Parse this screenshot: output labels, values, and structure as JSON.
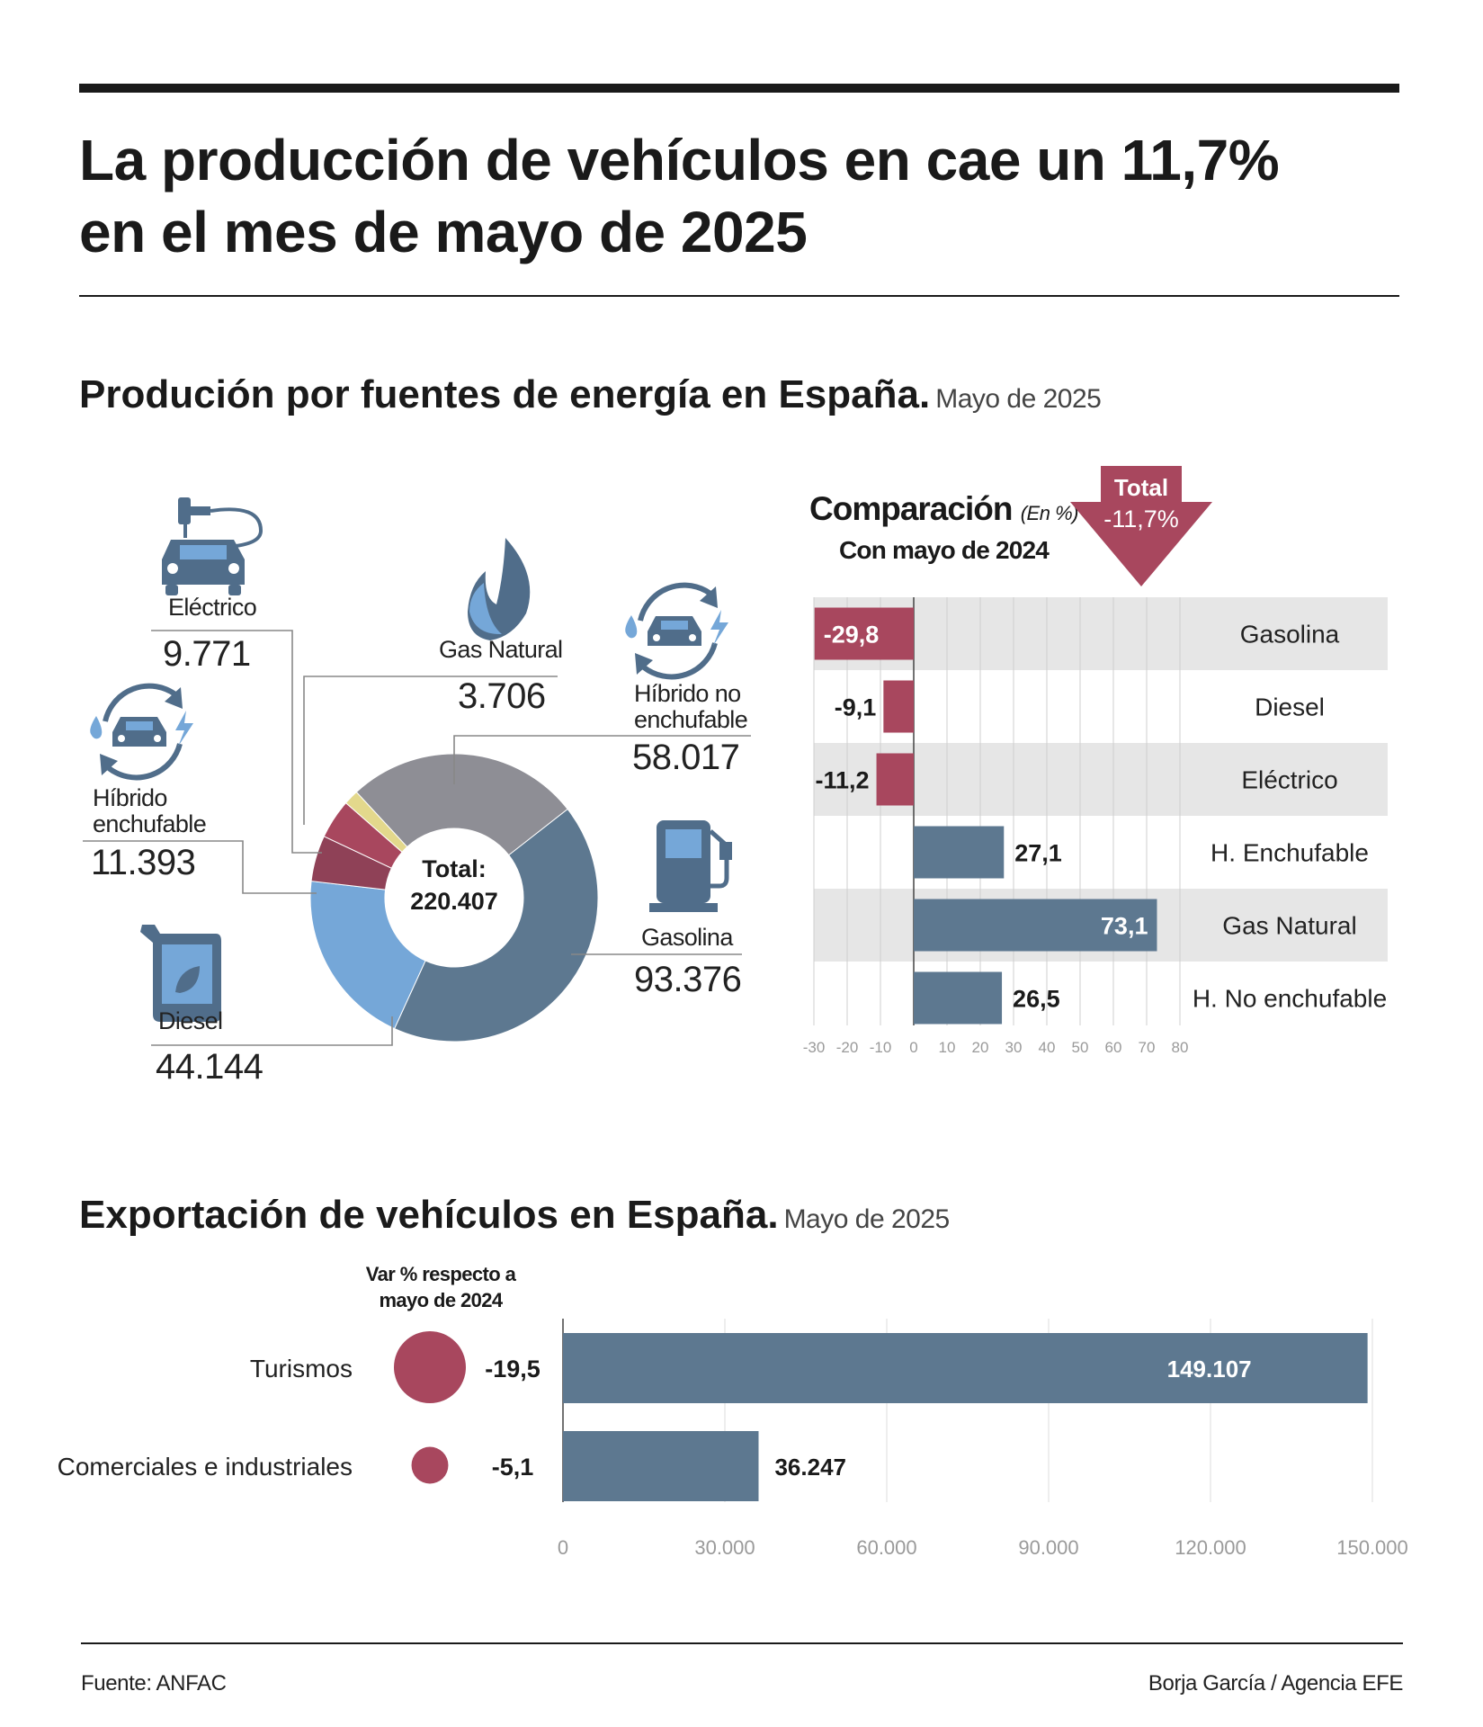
{
  "title_line1": "La producción de vehículos en cae un 11,7%",
  "title_line2": "en el mes de mayo de 2025",
  "section1": {
    "title": "Produción por fuentes de energía en España.",
    "subtitle": "Mayo de 2025"
  },
  "section2": {
    "title": "Exportación de vehículos en España.",
    "subtitle": "Mayo de 2025"
  },
  "donut": {
    "center_label": "Total:",
    "center_value": "220.407",
    "labels": {
      "electrico": {
        "name": "Eléctrico",
        "value": "9.771"
      },
      "gas_natural": {
        "name": "Gas Natural",
        "value": "3.706"
      },
      "hibrido_no_line1": "Híbrido no",
      "hibrido_no_line2": "enchufable",
      "hibrido_no_value": "58.017",
      "hibrido_enchufable_line1": "Híbrido",
      "hibrido_enchufable_line2": "enchufable",
      "hibrido_enchufable_value": "11.393",
      "gasolina": {
        "name": "Gasolina",
        "value": "93.376"
      },
      "diesel": {
        "name": "Diesel",
        "value": "44.144"
      }
    }
  },
  "comparison": {
    "title": "Comparación",
    "unit": "(En %)",
    "subtitle": "Con mayo de 2024",
    "total_label": "Total",
    "total_value": "-11,7%",
    "ticks": [
      "-30",
      "-20",
      "-10",
      "0",
      "10",
      "20",
      "30",
      "40",
      "50",
      "60",
      "70",
      "80"
    ]
  },
  "exports": {
    "var_header_line1": "Var % respecto a",
    "var_header_line2": "mayo de 2024",
    "ticks": [
      "0",
      "30.000",
      "60.000",
      "90.000",
      "120.000",
      "150.000"
    ]
  },
  "colors": {
    "red": "#a8475e",
    "slate": "#5d7890",
    "lightblue": "#75a7d8",
    "grey": "#8e8e95",
    "yellow": "#e3d88c",
    "icon": "#506d8a",
    "rowbg": "#e6e6e6"
  },
  "footer": {
    "source": "Fuente: ANFAC",
    "credit": "Borja García / Agencia EFE"
  },
  "chart_data": [
    {
      "type": "pie",
      "categories": [
        "Gasolina",
        "Diesel",
        "Híbrido enchufable",
        "Eléctrico",
        "Gas Natural",
        "Híbrido no enchufable"
      ],
      "values": [
        93376,
        44144,
        11393,
        9771,
        3706,
        58017
      ],
      "colors": [
        "#5d7890",
        "#75a7d8",
        "#8f4157",
        "#a8475e",
        "#e3d88c",
        "#8e8e95"
      ],
      "legend": "none"
    },
    {
      "type": "bar",
      "orientation": "horizontal",
      "categories": [
        "Gasolina",
        "Diesel",
        "Eléctrico",
        "H. Enchufable",
        "Gas Natural",
        "H. No enchufable"
      ],
      "values": [
        -29.8,
        -9.1,
        -11.2,
        27.1,
        73.1,
        26.5
      ],
      "value_labels": [
        "-29,8",
        "-9,1",
        "-11,2",
        "27,1",
        "73,1",
        "26,5"
      ],
      "xlim": [
        -30,
        80
      ],
      "grid": true
    },
    {
      "type": "bar",
      "orientation": "horizontal",
      "categories": [
        "Turismos",
        "Comerciales e industriales"
      ],
      "values": [
        149107,
        36247
      ],
      "value_labels": [
        "149.107",
        "36.247"
      ],
      "variation": [
        -19.5,
        -5.1
      ],
      "variation_labels": [
        "-19,5",
        "-5,1"
      ],
      "xlim": [
        0,
        150000
      ],
      "grid": true
    }
  ]
}
